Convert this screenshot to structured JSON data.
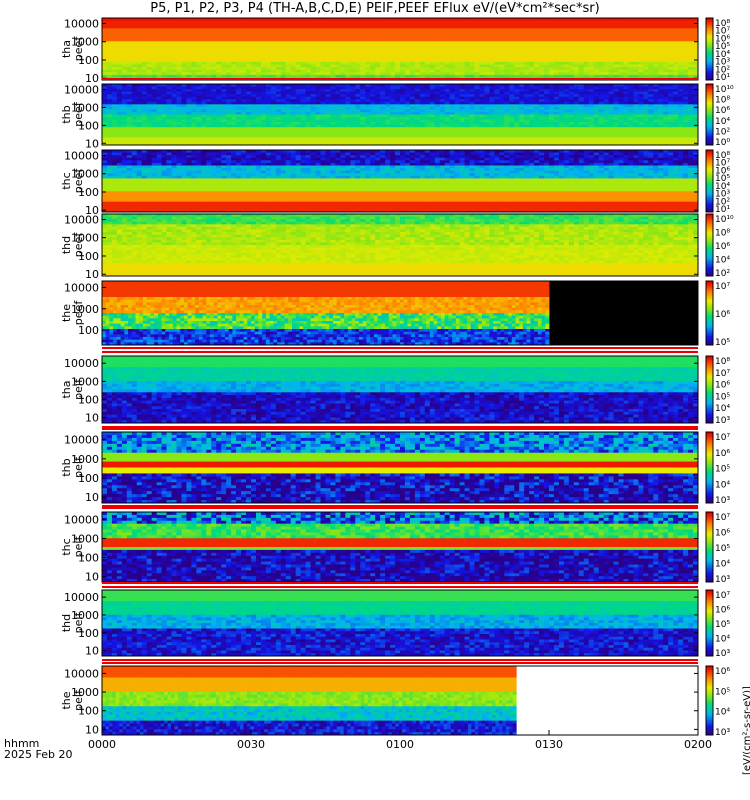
{
  "title": "P5, P1, P2, P3, P4 (TH-A,B,C,D,E) PEIF,PEEF EFlux eV/(eV*cm²*sec*sr)",
  "footer": {
    "x_unit": "hhmm",
    "date": "2025 Feb 20"
  },
  "colorbar_title": "[eV/(cm²-s-sr-eV)]",
  "chart_data": {
    "type": "heatmap",
    "x_ticks": [
      "0000",
      "0030",
      "0100",
      "0130",
      "0200"
    ],
    "y_tick_labels": [
      "10000",
      "1000",
      "100",
      "10"
    ],
    "y_scale": "log",
    "panels": [
      {
        "probe": "tha",
        "species": "peef",
        "ylim": [
          8,
          20000
        ],
        "cb_ticks": [
          "10⁸",
          "10⁷",
          "10⁶",
          "10⁵",
          "10⁴",
          "10³",
          "10²",
          "10¹"
        ],
        "end_fraction": 1.0,
        "pattern": "e_hot"
      },
      {
        "probe": "thb",
        "species": "peef",
        "ylim": [
          8,
          20000
        ],
        "cb_ticks": [
          "10¹⁰",
          "10⁸",
          "10⁶",
          "10⁴",
          "10²",
          "10⁰"
        ],
        "end_fraction": 1.0,
        "pattern": "e_sw"
      },
      {
        "probe": "thc",
        "species": "peef",
        "ylim": [
          8,
          20000
        ],
        "cb_ticks": [
          "10⁸",
          "10⁷",
          "10⁶",
          "10⁵",
          "10⁴",
          "10³",
          "10²",
          "10¹"
        ],
        "end_fraction": 1.0,
        "pattern": "e_sw2"
      },
      {
        "probe": "thd",
        "species": "peef",
        "ylim": [
          8,
          20000
        ],
        "cb_ticks": [
          "10¹⁰",
          "10⁸",
          "10⁶",
          "10⁴",
          "10²"
        ],
        "end_fraction": 1.0,
        "pattern": "e_warm"
      },
      {
        "probe": "the",
        "species": "peef",
        "ylim": [
          20,
          20000
        ],
        "cb_ticks": [
          "10⁷",
          "10⁶",
          "10⁵"
        ],
        "end_fraction": 0.75,
        "pattern": "e_the"
      },
      {
        "probe": "tha",
        "species": "peif",
        "ylim": [
          5,
          25000
        ],
        "cb_ticks": [
          "10⁸",
          "10⁷",
          "10⁶",
          "10⁵",
          "10⁴",
          "10³"
        ],
        "end_fraction": 1.0,
        "pattern": "i_sheath"
      },
      {
        "probe": "thb",
        "species": "peif",
        "ylim": [
          5,
          25000
        ],
        "cb_ticks": [
          "10⁷",
          "10⁶",
          "10⁵",
          "10⁴",
          "10³"
        ],
        "end_fraction": 1.0,
        "pattern": "i_sw"
      },
      {
        "probe": "thc",
        "species": "peif",
        "ylim": [
          5,
          25000
        ],
        "cb_ticks": [
          "10⁷",
          "10⁶",
          "10⁵",
          "10⁴",
          "10³"
        ],
        "end_fraction": 1.0,
        "pattern": "i_sw2"
      },
      {
        "probe": "thd",
        "species": "peif",
        "ylim": [
          5,
          25000
        ],
        "cb_ticks": [
          "10⁷",
          "10⁶",
          "10⁵",
          "10⁴",
          "10³"
        ],
        "end_fraction": 1.0,
        "pattern": "i_sheath2"
      },
      {
        "probe": "the",
        "species": "peif",
        "ylim": [
          5,
          25000
        ],
        "cb_ticks": [
          "10⁶",
          "10⁵",
          "10⁴",
          "10³"
        ],
        "end_fraction": 0.695,
        "pattern": "i_the"
      }
    ]
  }
}
